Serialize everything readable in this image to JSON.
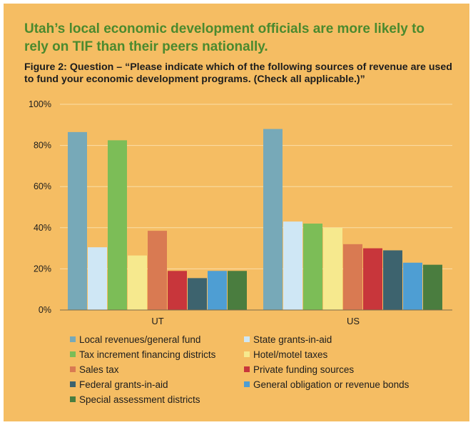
{
  "headline": "Utah’s local economic development officials are more likely to rely on TIF than their peers nationally.",
  "figure_title": "Figure 2:  Question – “Please indicate which of the following sources of revenue are used to fund your economic development programs. (Check all applicable.)”",
  "colors": {
    "background": "#f5bd63",
    "headline": "#4b8a2e",
    "gridline": "#fadfa8",
    "axis": "#7a6a4a"
  },
  "chart_data": {
    "type": "bar",
    "title": "Figure 2:  Question – “Please indicate which of the following sources of revenue are used to fund your economic development programs. (Check all applicable.)”",
    "categories": [
      "UT",
      "US"
    ],
    "ylim": [
      0,
      100
    ],
    "yticks": [
      0,
      20,
      40,
      60,
      80,
      100
    ],
    "ytick_labels": [
      "0%",
      "20%",
      "40%",
      "60%",
      "80%",
      "100%"
    ],
    "grid": true,
    "legend_position": "bottom",
    "series": [
      {
        "name": "Local revenues/general fund",
        "color": "#77a9b8",
        "values": [
          86.5,
          88
        ]
      },
      {
        "name": "State grants-in-aid",
        "color": "#cfe7f5",
        "values": [
          30.5,
          43
        ]
      },
      {
        "name": "Tax increment financing districts",
        "color": "#7cbd57",
        "values": [
          82.5,
          42
        ]
      },
      {
        "name": "Hotel/motel taxes",
        "color": "#f6e98e",
        "values": [
          26.5,
          40
        ]
      },
      {
        "name": "Sales tax",
        "color": "#d97a52",
        "values": [
          38.5,
          32
        ]
      },
      {
        "name": "Private funding sources",
        "color": "#c8363b",
        "values": [
          19,
          30
        ]
      },
      {
        "name": "Federal grants-in-aid",
        "color": "#3d636e",
        "values": [
          15.5,
          29
        ]
      },
      {
        "name": "General obligation or revenue bonds",
        "color": "#4e9ed3",
        "values": [
          19,
          23
        ]
      },
      {
        "name": "Special assessment districts",
        "color": "#4a7d3f",
        "values": [
          19,
          22
        ]
      }
    ]
  }
}
